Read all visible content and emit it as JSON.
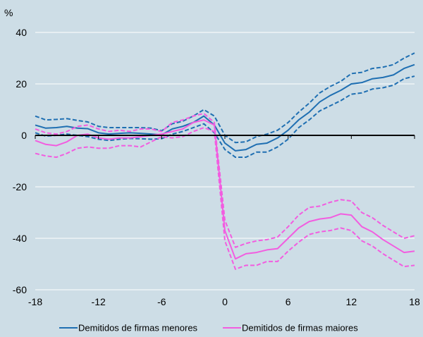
{
  "chart_data": {
    "type": "line",
    "ylabel": "%",
    "xlim": [
      -18,
      18
    ],
    "ylim": [
      -60,
      40
    ],
    "x_ticks": [
      -18,
      -12,
      -6,
      0,
      6,
      12,
      18
    ],
    "y_ticks": [
      40,
      20,
      0,
      -20,
      -40,
      -60
    ],
    "grid": "horizontal",
    "legend_position": "bottom",
    "x": [
      -18,
      -17,
      -16,
      -15,
      -14,
      -13,
      -12,
      -11,
      -10,
      -9,
      -8,
      -7,
      -6,
      -5,
      -4,
      -3,
      -2,
      -1,
      0,
      1,
      2,
      3,
      4,
      5,
      6,
      7,
      8,
      9,
      10,
      11,
      12,
      13,
      14,
      15,
      16,
      17,
      18
    ],
    "series": [
      {
        "name": "Demitidos de firmas menores",
        "color": "#1f6fb2",
        "style": "solid",
        "values": [
          4,
          2.8,
          3,
          3.5,
          2.8,
          2.6,
          1,
          0.5,
          0.8,
          1,
          0.8,
          0.5,
          0.2,
          2.5,
          3.5,
          5,
          7.5,
          4,
          -3,
          -6,
          -5.5,
          -3.5,
          -3,
          -1,
          2,
          6,
          9,
          13,
          15.5,
          17.5,
          20,
          20.5,
          22,
          22.5,
          23.5,
          26,
          27.5
        ]
      },
      {
        "name": "",
        "color": "#1f6fb2",
        "style": "dashed",
        "values": [
          7.5,
          6,
          6.2,
          6.5,
          5.8,
          5.2,
          3.5,
          3,
          3,
          3,
          3,
          2.8,
          1.8,
          4.5,
          5.5,
          7.5,
          10,
          7.5,
          0,
          -2.8,
          -2.5,
          -0.5,
          0.5,
          2,
          5,
          9,
          12.5,
          16.5,
          19,
          21,
          24,
          24.5,
          26,
          26.5,
          27.5,
          30,
          32
        ]
      },
      {
        "name": "",
        "color": "#1f6fb2",
        "style": "dashed",
        "values": [
          1,
          -0.3,
          0,
          0.5,
          0,
          -0.5,
          -1.5,
          -2,
          -1.5,
          -1.2,
          -1.3,
          -1.5,
          -1.3,
          0.5,
          1.5,
          3,
          4.5,
          1,
          -5.5,
          -8.5,
          -8.5,
          -6.5,
          -6.5,
          -4.5,
          -1.5,
          3,
          6,
          9.5,
          11.5,
          13.5,
          16,
          16.5,
          18,
          18.5,
          19.5,
          22,
          23
        ]
      },
      {
        "name": "Demitidos de firmas maiores",
        "color": "#f25de0",
        "style": "solid",
        "values": [
          -2,
          -3.5,
          -4,
          -2.5,
          0,
          0.5,
          -1,
          -1.5,
          -1,
          -1,
          -0.5,
          0,
          0.5,
          1.5,
          2.5,
          5,
          6,
          4,
          -37,
          -48,
          -46,
          -45.5,
          -44.5,
          -44,
          -40,
          -36,
          -33.5,
          -32.5,
          -32,
          -30.5,
          -31,
          -35.5,
          -37.5,
          -40.5,
          -43,
          -45.5,
          -45
        ]
      },
      {
        "name": "",
        "color": "#f25de0",
        "style": "dashed",
        "values": [
          2.5,
          1,
          0.5,
          1.5,
          3.5,
          4,
          2.5,
          1.5,
          2,
          1.5,
          2.5,
          2.5,
          1.5,
          5,
          6,
          7.5,
          8.5,
          5,
          -33,
          -43.5,
          -42,
          -41,
          -40.5,
          -39.5,
          -35.5,
          -31,
          -28,
          -27.5,
          -26,
          -25,
          -25.5,
          -30,
          -32,
          -35,
          -37.5,
          -40,
          -39
        ]
      },
      {
        "name": "",
        "color": "#f25de0",
        "style": "dashed",
        "values": [
          -7,
          -8,
          -8.5,
          -7,
          -5,
          -4.5,
          -5,
          -5,
          -4,
          -4,
          -4.5,
          -2.5,
          -0.5,
          -1,
          -0.5,
          1.5,
          3,
          1.5,
          -41,
          -52,
          -50.5,
          -50.5,
          -49,
          -49,
          -45,
          -41.5,
          -38.5,
          -37.5,
          -37,
          -36,
          -37,
          -41,
          -43,
          -46,
          -48.5,
          -51,
          -50.5
        ]
      }
    ]
  }
}
